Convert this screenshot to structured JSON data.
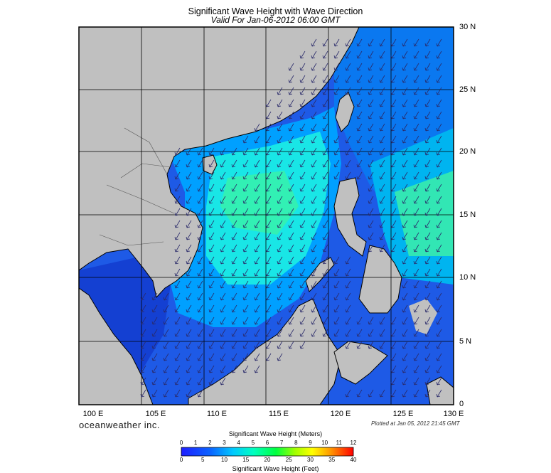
{
  "header": {
    "title": "Significant Wave Height with Wave Direction",
    "valid": "Valid For Jan-06-2012 06:00 GMT"
  },
  "map": {
    "lat_labels": [
      "30 N",
      "25 N",
      "20 N",
      "15 N",
      "10 N",
      "5 N",
      "0"
    ],
    "lon_labels": [
      "100 E",
      "105 E",
      "110 E",
      "115 E",
      "120 E",
      "125 E",
      "130 E"
    ],
    "land_color": "#c0c0c0",
    "sea_colors": {
      "low": "#1e5ae6",
      "mid": "#00a0ff",
      "high": "#19e6e6",
      "peak": "#32f0b4",
      "deep": "#0a2896"
    },
    "arrow_direction": "northeasterly flow (arrows pointing south-west)"
  },
  "footer": {
    "brand": "oceanweather inc.",
    "plotted": "Plotted at Jan 05, 2012 21:45 GMT"
  },
  "colorbar": {
    "title_top": "Significant Wave Height (Meters)",
    "title_bottom": "Significant Wave Height (Feet)",
    "meters_ticks": [
      "0",
      "1",
      "2",
      "3",
      "4",
      "5",
      "6",
      "7",
      "8",
      "9",
      "10",
      "11",
      "12"
    ],
    "feet_ticks": [
      "0",
      "5",
      "10",
      "15",
      "20",
      "25",
      "30",
      "35",
      "40"
    ]
  }
}
